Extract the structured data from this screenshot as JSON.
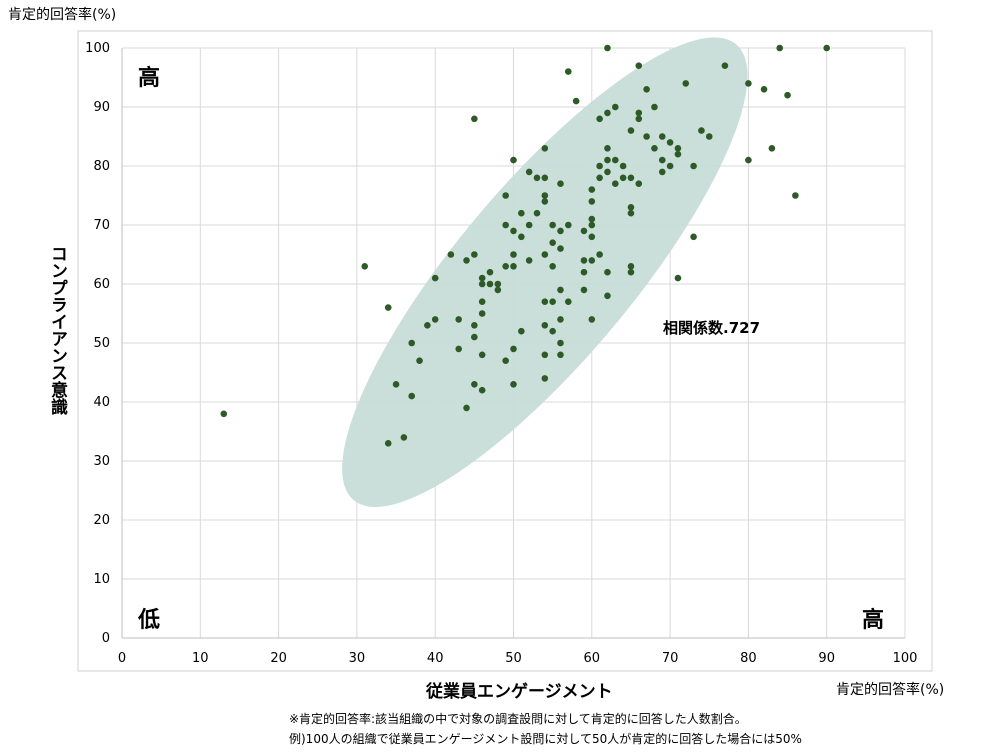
{
  "chart_data": {
    "type": "scatter",
    "title": "",
    "unit_label_top": "肯定的回答率(%)",
    "unit_label_right": "肯定的回答率(%)",
    "xlabel": "従業員エンゲージメント",
    "ylabel": "コンプライアンス意識",
    "xlim": [
      0,
      100
    ],
    "ylim": [
      0,
      100
    ],
    "x_ticks": [
      "0",
      "10",
      "20",
      "30",
      "40",
      "50",
      "60",
      "70",
      "80",
      "90",
      "100"
    ],
    "y_ticks": [
      "0",
      "10",
      "20",
      "30",
      "40",
      "50",
      "60",
      "70",
      "80",
      "90",
      "100"
    ],
    "grid": true,
    "annotation": "相関係数.727",
    "corner_labels": {
      "top_left": "高",
      "bottom_left": "低",
      "bottom_right": "高"
    },
    "highlight_ellipse": {
      "center": [
        54,
        62
      ],
      "semi_axis_x": 38,
      "semi_axis_y": 33,
      "color": "#c7ddd8"
    },
    "marker_color": "#2d5a27",
    "points": [
      [
        13,
        38
      ],
      [
        31,
        63
      ],
      [
        34,
        56
      ],
      [
        34,
        33
      ],
      [
        35,
        43
      ],
      [
        36,
        34
      ],
      [
        37,
        50
      ],
      [
        37,
        41
      ],
      [
        38,
        47
      ],
      [
        39,
        53
      ],
      [
        40,
        54
      ],
      [
        40,
        61
      ],
      [
        42,
        65
      ],
      [
        43,
        54
      ],
      [
        43,
        49
      ],
      [
        44,
        64
      ],
      [
        44,
        39
      ],
      [
        45,
        88
      ],
      [
        45,
        65
      ],
      [
        45,
        53
      ],
      [
        45,
        51
      ],
      [
        45,
        43
      ],
      [
        46,
        61
      ],
      [
        46,
        60
      ],
      [
        46,
        57
      ],
      [
        46,
        55
      ],
      [
        46,
        48
      ],
      [
        46,
        42
      ],
      [
        47,
        62
      ],
      [
        47,
        60
      ],
      [
        48,
        60
      ],
      [
        48,
        59
      ],
      [
        49,
        75
      ],
      [
        49,
        70
      ],
      [
        49,
        63
      ],
      [
        49,
        47
      ],
      [
        50,
        81
      ],
      [
        50,
        69
      ],
      [
        50,
        65
      ],
      [
        50,
        63
      ],
      [
        50,
        49
      ],
      [
        50,
        43
      ],
      [
        51,
        72
      ],
      [
        51,
        68
      ],
      [
        51,
        52
      ],
      [
        52,
        79
      ],
      [
        52,
        70
      ],
      [
        52,
        64
      ],
      [
        53,
        78
      ],
      [
        53,
        72
      ],
      [
        54,
        83
      ],
      [
        54,
        78
      ],
      [
        54,
        75
      ],
      [
        54,
        74
      ],
      [
        54,
        65
      ],
      [
        54,
        57
      ],
      [
        54,
        53
      ],
      [
        54,
        48
      ],
      [
        54,
        44
      ],
      [
        55,
        70
      ],
      [
        55,
        67
      ],
      [
        55,
        63
      ],
      [
        55,
        57
      ],
      [
        55,
        52
      ],
      [
        56,
        77
      ],
      [
        56,
        69
      ],
      [
        56,
        66
      ],
      [
        56,
        59
      ],
      [
        56,
        54
      ],
      [
        56,
        50
      ],
      [
        56,
        48
      ],
      [
        57,
        96
      ],
      [
        57,
        70
      ],
      [
        57,
        57
      ],
      [
        58,
        91
      ],
      [
        59,
        69
      ],
      [
        59,
        64
      ],
      [
        59,
        62
      ],
      [
        59,
        59
      ],
      [
        60,
        76
      ],
      [
        60,
        74
      ],
      [
        60,
        71
      ],
      [
        60,
        70
      ],
      [
        60,
        68
      ],
      [
        60,
        64
      ],
      [
        60,
        54
      ],
      [
        61,
        88
      ],
      [
        61,
        80
      ],
      [
        61,
        78
      ],
      [
        61,
        65
      ],
      [
        62,
        100
      ],
      [
        62,
        89
      ],
      [
        62,
        83
      ],
      [
        62,
        81
      ],
      [
        62,
        79
      ],
      [
        62,
        62
      ],
      [
        62,
        58
      ],
      [
        63,
        90
      ],
      [
        63,
        81
      ],
      [
        63,
        77
      ],
      [
        64,
        80
      ],
      [
        64,
        78
      ],
      [
        65,
        86
      ],
      [
        65,
        78
      ],
      [
        65,
        73
      ],
      [
        65,
        72
      ],
      [
        65,
        63
      ],
      [
        65,
        62
      ],
      [
        66,
        97
      ],
      [
        66,
        89
      ],
      [
        66,
        88
      ],
      [
        66,
        77
      ],
      [
        67,
        93
      ],
      [
        67,
        85
      ],
      [
        68,
        90
      ],
      [
        68,
        83
      ],
      [
        69,
        85
      ],
      [
        69,
        81
      ],
      [
        69,
        79
      ],
      [
        70,
        84
      ],
      [
        70,
        80
      ],
      [
        71,
        83
      ],
      [
        71,
        82
      ],
      [
        71,
        61
      ],
      [
        72,
        94
      ],
      [
        73,
        80
      ],
      [
        73,
        68
      ],
      [
        74,
        86
      ],
      [
        75,
        85
      ],
      [
        77,
        97
      ],
      [
        80,
        94
      ],
      [
        80,
        81
      ],
      [
        82,
        93
      ],
      [
        83,
        83
      ],
      [
        84,
        100
      ],
      [
        85,
        92
      ],
      [
        86,
        75
      ],
      [
        90,
        100
      ]
    ]
  },
  "footnotes": [
    "※肯定的回答率:該当組織の中で対象の調査設問に対して肯定的に回答した人数割合。",
    "例)100人の組織で従業員エンゲージメント設問に対して50人が肯定的に回答した場合には50%"
  ]
}
